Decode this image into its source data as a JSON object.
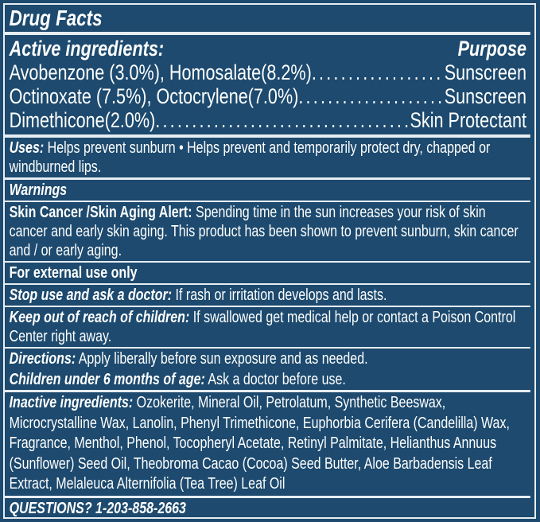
{
  "title": "Drug Facts",
  "active": {
    "heading": "Active ingredients:",
    "purpose_heading": "Purpose",
    "rows": [
      {
        "ingredient": "Avobenzone (3.0%), Homosalate(8.2%)",
        "purpose": "Sunscreen"
      },
      {
        "ingredient": "Octinoxate (7.5%), Octocrylene(7.0%)",
        "purpose": "Sunscreen"
      },
      {
        "ingredient": "Dimethicone(2.0%)",
        "purpose": "Skin Protectant"
      }
    ]
  },
  "uses": {
    "label": "Uses:",
    "text": " Helps prevent sunburn • Helps prevent and temporarily protect dry, chapped or windburned lips."
  },
  "warnings": {
    "heading": "Warnings",
    "skin_alert": {
      "label": "Skin Cancer /Skin Aging Alert:",
      "text": " Spending time in the sun increases your risk of skin cancer and early skin aging. This product has been shown to prevent sunburn, skin cancer and / or early aging."
    },
    "external": "For external use only",
    "stop_use": {
      "label": "Stop use and ask a doctor:",
      "text": " If rash or irritation develops and lasts."
    },
    "keep_out": {
      "label": "Keep out of reach of children:",
      "text": " If swallowed get medical help or contact a Poison Control Center right away."
    }
  },
  "directions": {
    "label": "Directions:",
    "text": " Apply liberally before sun exposure and as needed."
  },
  "children": {
    "label": "Children under 6 months of age:",
    "text": " Ask a doctor before use."
  },
  "inactive": {
    "label": "Inactive ingredients:",
    "text": " Ozokerite, Mineral Oil, Petrolatum, Synthetic Beeswax, Microcrystalline Wax, Lanolin, Phenyl Trimethicone, Euphorbia Cerifera (Candelilla) Wax, Fragrance, Menthol, Phenol, Tocopheryl Acetate, Retinyl Palmitate, Helianthus Annuus (Sunflower) Seed Oil, Theobroma Cacao (Cocoa) Seed Butter, Aloe Barbadensis Leaf Extract, Melaleuca Alternifolia (Tea Tree) Leaf Oil"
  },
  "questions": "QUESTIONS? 1-203-858-2663",
  "colors": {
    "background": "#1d4a6e",
    "rule": "#e6edf3",
    "text": "#ffffff"
  }
}
